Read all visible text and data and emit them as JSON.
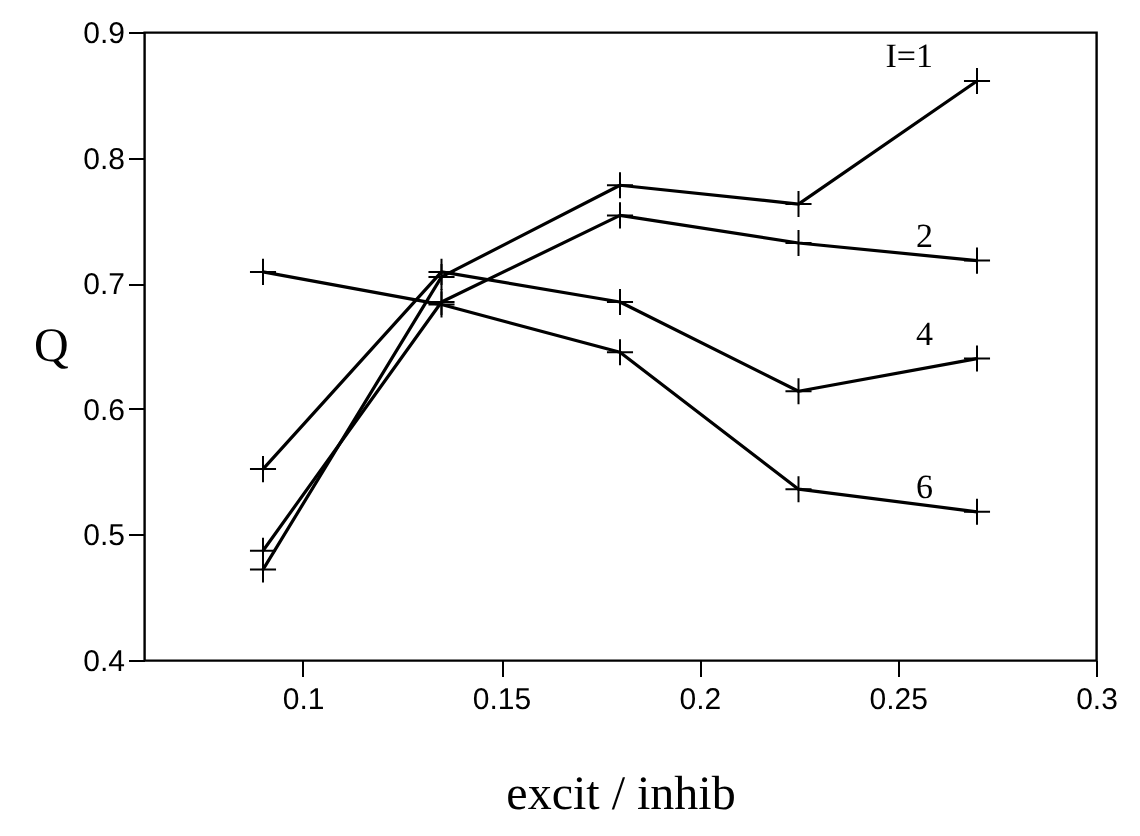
{
  "chart_data": {
    "type": "line",
    "xlabel": "excit / inhib",
    "ylabel": "Q",
    "x": [
      0.09,
      0.135,
      0.18,
      0.225,
      0.27
    ],
    "series": [
      {
        "name": "I=1",
        "color": "#000000",
        "values": [
          0.472,
          0.705,
          0.778,
          0.763,
          0.861
        ]
      },
      {
        "name": "2",
        "color": "#000000",
        "values": [
          0.487,
          0.685,
          0.754,
          0.732,
          0.718
        ]
      },
      {
        "name": "4",
        "color": "#000000",
        "values": [
          0.552,
          0.709,
          0.685,
          0.614,
          0.64
        ]
      },
      {
        "name": "6",
        "color": "#000000",
        "values": [
          0.709,
          0.683,
          0.645,
          0.536,
          0.518
        ]
      }
    ],
    "xlim": [
      0.06,
      0.3
    ],
    "xticks": [
      0.1,
      0.15,
      0.2,
      0.25,
      0.3
    ],
    "ylim": [
      0.4,
      0.9
    ],
    "yticks": [
      0.4,
      0.5,
      0.6,
      0.7,
      0.8,
      0.9
    ],
    "grid": false,
    "marker": "cross",
    "line_style": "solid"
  }
}
